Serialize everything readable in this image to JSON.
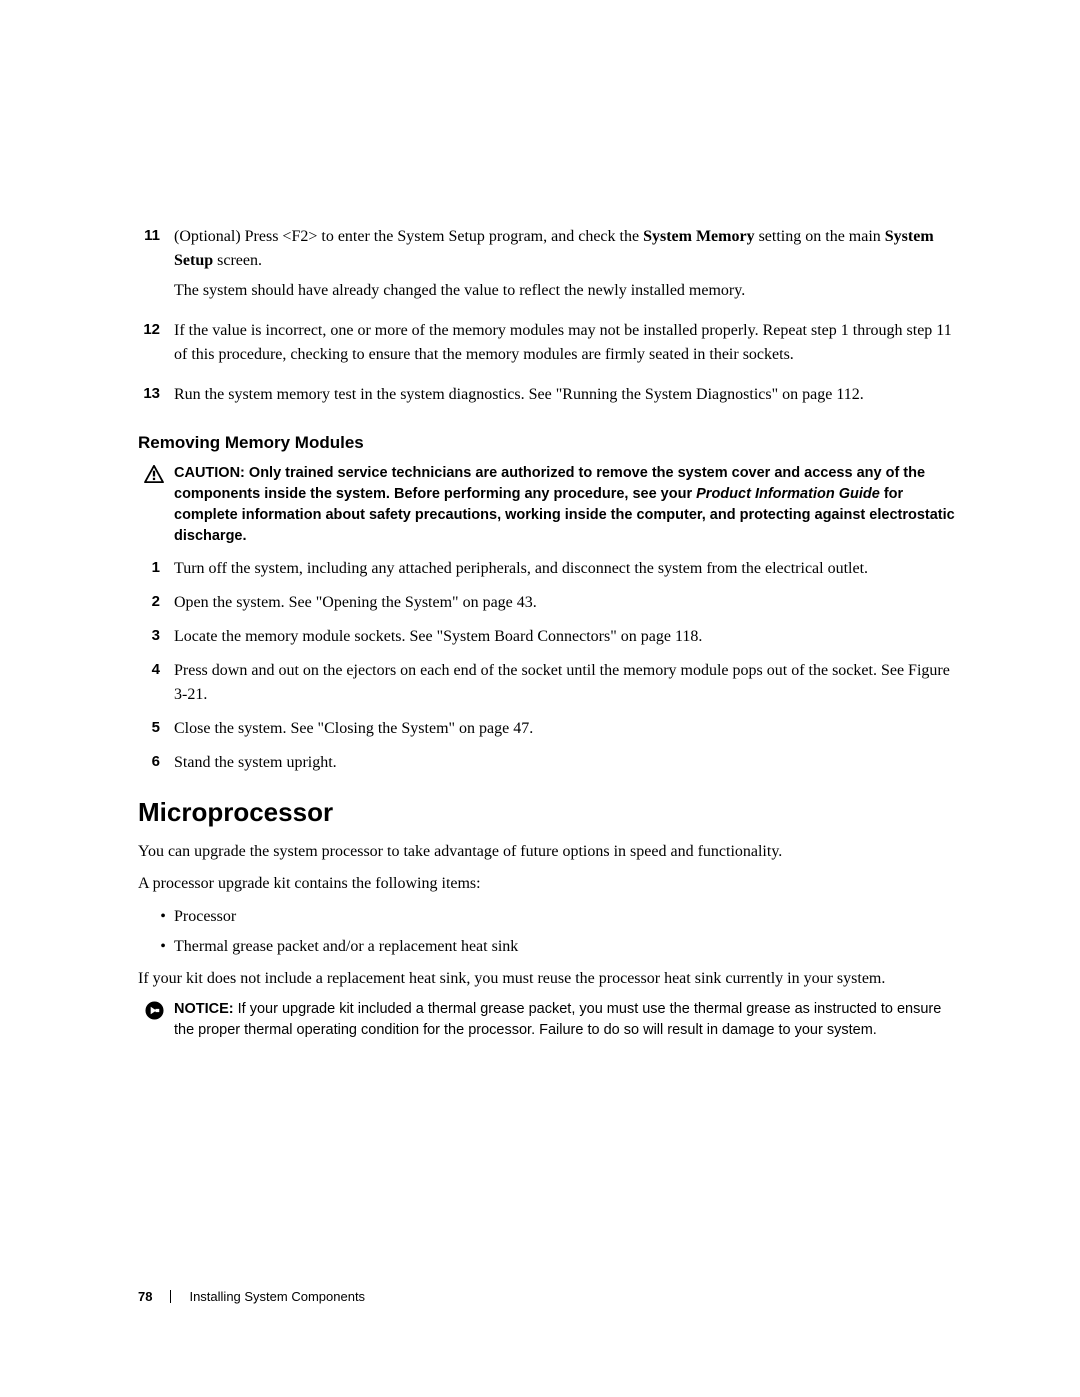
{
  "steps_upper": [
    {
      "num": "11",
      "paras": [
        "(Optional) Press <F2> to enter the System Setup program, and check the <b>System Memory</b> setting on the main <b>System Setup</b> screen.",
        "The system should have already changed the value to reflect the newly installed memory."
      ]
    },
    {
      "num": "12",
      "paras": [
        "If the value is incorrect, one or more of the memory modules may not be installed properly. Repeat step 1 through step 11 of this procedure, checking to ensure that the memory modules are firmly seated in their sockets."
      ]
    },
    {
      "num": "13",
      "paras": [
        "Run the system memory test in the system diagnostics. See \"Running the System Diagnostics\" on page 112."
      ]
    }
  ],
  "section_heading": "Removing Memory Modules",
  "caution": {
    "lead": "CAUTION: ",
    "text_before": "Only trained service technicians are authorized to remove the system cover and access any of the components inside the system. Before performing any procedure, see your ",
    "italic": "Product Information Guide",
    "text_after": " for complete information about safety precautions, working inside the computer, and protecting against electrostatic discharge."
  },
  "steps_lower": [
    {
      "num": "1",
      "text": "Turn off the system, including any attached peripherals, and disconnect the system from the electrical outlet."
    },
    {
      "num": "2",
      "text": "Open the system. See \"Opening the System\" on page 43."
    },
    {
      "num": "3",
      "text": "Locate the memory module sockets. See \"System Board Connectors\" on page 118."
    },
    {
      "num": "4",
      "text": "Press down and out on the ejectors on each end of the socket until the memory module pops out of the socket. See Figure 3-21."
    },
    {
      "num": "5",
      "text": "Close the system. See \"Closing the System\" on page 47."
    },
    {
      "num": "6",
      "text": "Stand the system upright."
    }
  ],
  "chapter_heading": "Microprocessor",
  "micro_para1": "You can upgrade the system processor to take advantage of future options in speed and functionality.",
  "micro_para2": "A processor upgrade kit contains the following items:",
  "bullets": [
    "Processor",
    "Thermal grease packet and/or a replacement heat sink"
  ],
  "micro_para3": "If your kit does not include a replacement heat sink, you must reuse the processor heat sink currently in your system.",
  "notice": {
    "lead": "NOTICE: ",
    "text": "If your upgrade kit included a thermal grease packet, you must use the thermal grease as instructed to ensure the proper thermal operating condition for the processor. Failure to do so will result in damage to your system."
  },
  "footer": {
    "page_num": "78",
    "section": "Installing System Components"
  }
}
